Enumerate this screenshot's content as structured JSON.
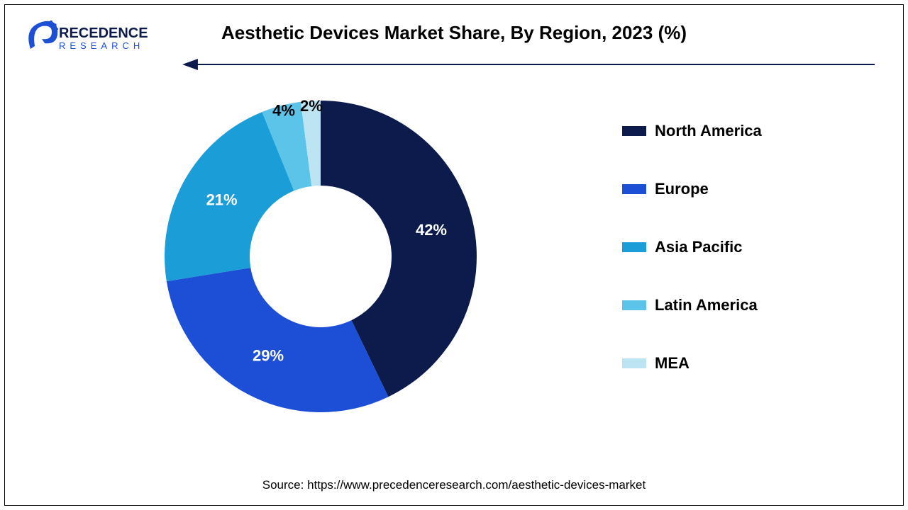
{
  "title": "Aesthetic Devices Market Share, By Region, 2023 (%)",
  "source": "Source: https://www.precedenceresearch.com/aesthetic-devices-market",
  "logo": {
    "text_top": "RECEDENCE",
    "text_bottom": "RESEARCH",
    "p_color": "#1c4fd6",
    "text_color": "#0d1b4c",
    "sub_color": "#1c4fd6"
  },
  "arrow": {
    "color": "#0d1b4c",
    "stroke_width": 2
  },
  "chart": {
    "type": "donut",
    "outer_radius": 220,
    "inner_radius": 100,
    "background_color": "#ffffff",
    "start_angle_deg": -90,
    "slices": [
      {
        "label": "North America",
        "value": 42,
        "color": "#0d1b4c",
        "label_color": "light",
        "display": "42%"
      },
      {
        "label": "Europe",
        "value": 29,
        "color": "#1c4fd6",
        "label_color": "light",
        "display": "29%"
      },
      {
        "label": "Asia Pacific",
        "value": 21,
        "color": "#1b9dd8",
        "label_color": "light",
        "display": "21%"
      },
      {
        "label": "Latin America",
        "value": 4,
        "color": "#5bc4e8",
        "label_color": "dark",
        "display": "4%"
      },
      {
        "label": "MEA",
        "value": 2,
        "color": "#bce4f2",
        "label_color": "dark",
        "display": "2%"
      }
    ],
    "label_radius": 160,
    "label_radius_small": 205,
    "label_fontsize": 22,
    "label_fontweight": "bold"
  },
  "legend": {
    "fontsize": 22,
    "fontweight": "bold",
    "swatch_w": 34,
    "swatch_h": 14
  }
}
